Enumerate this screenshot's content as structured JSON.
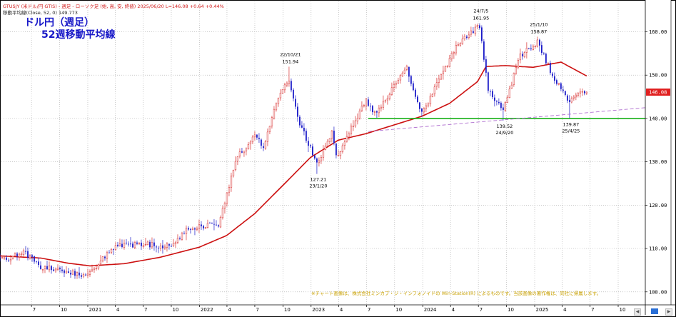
{
  "header": {
    "line1": "GTUSJY (米ドル/円 GTIS) - 週足 - ローソク足 (始, 高, 安, 終値)   2025/06/20  L=146.08  +0.64  +0.44%",
    "line2": "移動平均線(Close, 52, 0)  149.773"
  },
  "title": {
    "line1": "ドル円（週足）",
    "line2": "52週移動平均線"
  },
  "footnote": "※チャート画像は、株式会社ミンカブ・ジ・インフォノイドの Win-Station(R) によるものです。当該画像の著作権は、同社に帰属します。",
  "colors": {
    "up": "#d83030",
    "down": "#1a1ac8",
    "ma": "#cc1010",
    "support": "#19b019",
    "trend": "#b070d0",
    "last_price_tag": "#e02020"
  },
  "chart_data": {
    "type": "candlestick",
    "title": "ドル円（週足） 52週移動平均線",
    "ylim": [
      97,
      167
    ],
    "y_ticks": [
      100,
      110,
      120,
      130,
      140,
      150,
      160
    ],
    "x_tick_labels": [
      "7",
      "10",
      "2021",
      "4",
      "7",
      "10",
      "2022",
      "4",
      "7",
      "10",
      "2023",
      "4",
      "7",
      "10",
      "2024",
      "4",
      "7",
      "10",
      "2025",
      "4",
      "7",
      "10"
    ],
    "x_tick_dates": [
      "2020-07",
      "2020-10",
      "2021-01",
      "2021-04",
      "2021-07",
      "2021-10",
      "2022-01",
      "2022-04",
      "2022-07",
      "2022-10",
      "2023-01",
      "2023-04",
      "2023-07",
      "2023-10",
      "2024-01",
      "2024-04",
      "2024-07",
      "2024-10",
      "2025-01",
      "2025-04",
      "2025-07",
      "2025-10"
    ],
    "last_price": "146.08",
    "price_path": [
      [
        "2020-03-20",
        108.0
      ],
      [
        "2020-04-17",
        107.5
      ],
      [
        "2020-06-05",
        109.3
      ],
      [
        "2020-07-31",
        105.8
      ],
      [
        "2020-10-30",
        104.6
      ],
      [
        "2020-12-25",
        103.4
      ],
      [
        "2021-03-31",
        110.5
      ],
      [
        "2021-06-30",
        111.0
      ],
      [
        "2021-09-30",
        110.5
      ],
      [
        "2021-11-24",
        114.5
      ],
      [
        "2022-01-31",
        115.5
      ],
      [
        "2022-03-04",
        115.0
      ],
      [
        "2022-04-29",
        130.5
      ],
      [
        "2022-06-30",
        136.0
      ],
      [
        "2022-07-29",
        133.5
      ],
      [
        "2022-09-09",
        143.5
      ],
      [
        "2022-10-21",
        149.0
      ],
      [
        "2022-11-18",
        140.0
      ],
      [
        "2023-01-20",
        129.5
      ],
      [
        "2023-03-10",
        136.5
      ],
      [
        "2023-03-24",
        131.0
      ],
      [
        "2023-06-30",
        144.3
      ],
      [
        "2023-07-28",
        141.0
      ],
      [
        "2023-11-10",
        151.5
      ],
      [
        "2023-12-29",
        141.0
      ],
      [
        "2024-04-26",
        157.5
      ],
      [
        "2024-07-05",
        161.3
      ],
      [
        "2024-08-02",
        146.5
      ],
      [
        "2024-09-20",
        142.0
      ],
      [
        "2024-11-15",
        154.5
      ],
      [
        "2025-01-10",
        157.7
      ],
      [
        "2025-02-28",
        150.0
      ],
      [
        "2025-04-25",
        143.5
      ],
      [
        "2025-05-09",
        145.5
      ],
      [
        "2025-06-20",
        146.08
      ]
    ],
    "ma52": [
      [
        "2020-03-20",
        108.3
      ],
      [
        "2020-07-31",
        107.8
      ],
      [
        "2020-10-30",
        106.6
      ],
      [
        "2021-01-08",
        106.0
      ],
      [
        "2021-04-30",
        106.5
      ],
      [
        "2021-08-27",
        108.0
      ],
      [
        "2021-12-31",
        110.3
      ],
      [
        "2022-03-31",
        113.0
      ],
      [
        "2022-06-30",
        118.0
      ],
      [
        "2022-09-30",
        124.5
      ],
      [
        "2022-12-30",
        131.0
      ],
      [
        "2023-03-31",
        135.0
      ],
      [
        "2023-06-30",
        136.5
      ],
      [
        "2023-09-29",
        138.5
      ],
      [
        "2023-12-29",
        140.5
      ],
      [
        "2024-03-29",
        143.5
      ],
      [
        "2024-06-28",
        148.5
      ],
      [
        "2024-07-26",
        152.0
      ],
      [
        "2024-09-27",
        152.2
      ],
      [
        "2024-12-27",
        151.8
      ],
      [
        "2025-03-28",
        153.0
      ],
      [
        "2025-06-20",
        149.8
      ]
    ],
    "support_line": {
      "value": 140.0,
      "from": "2023-07-07",
      "to": "2025-12-31"
    },
    "trend_line": {
      "from": [
        "2023-07-07",
        137.0
      ],
      "to": [
        "2025-12-31",
        142.5
      ]
    },
    "annotations": [
      {
        "date": "2022-10-21",
        "label_date": "22/10/21",
        "value": "151.94",
        "position": "above"
      },
      {
        "date": "2023-01-20",
        "label_date": "23/1/20",
        "value": "127.21",
        "position": "below"
      },
      {
        "date": "2024-07-05",
        "label_date": "24/7/5",
        "value": "161.95",
        "position": "above"
      },
      {
        "date": "2024-09-20",
        "label_date": "24/9/20",
        "value": "139.52",
        "position": "below"
      },
      {
        "date": "2025-01-10",
        "label_date": "25/1/10",
        "value": "158.87",
        "position": "above"
      },
      {
        "date": "2025-04-25",
        "label_date": "25/4/25",
        "value": "139.87",
        "position": "below"
      }
    ]
  }
}
